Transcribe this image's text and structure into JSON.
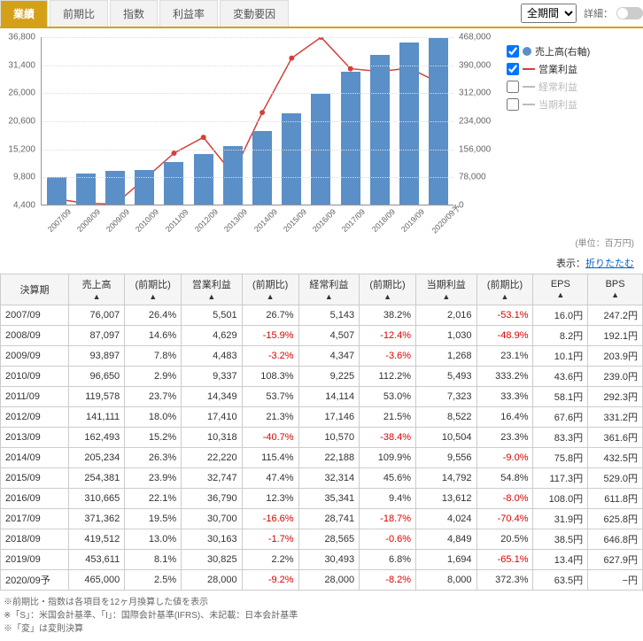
{
  "tabs": {
    "items": [
      "業績",
      "前期比",
      "指数",
      "利益率",
      "変動要因"
    ],
    "active": 0
  },
  "period_select": "全期間",
  "detail_label": "詳細：",
  "chart": {
    "type": "bar+line",
    "categories": [
      "2007/09",
      "2008/09",
      "2009/09",
      "2010/09",
      "2011/09",
      "2012/09",
      "2013/09",
      "2014/09",
      "2015/09",
      "2016/09",
      "2017/09",
      "2018/09",
      "2019/09",
      "2020/09予"
    ],
    "bars": {
      "label": "売上高(右軸)",
      "color": "#5b8fc7",
      "values": [
        76007,
        87097,
        93897,
        96650,
        119578,
        141111,
        162493,
        205234,
        254381,
        310665,
        371362,
        419512,
        453611,
        465000
      ],
      "ymin": 0,
      "ymax": 468000,
      "ticks": [
        0,
        78000,
        156000,
        234000,
        312000,
        390000,
        468000
      ]
    },
    "line": {
      "label": "営業利益",
      "color": "#d43f3a",
      "values": [
        5501,
        4629,
        4483,
        9337,
        14349,
        17410,
        10318,
        22220,
        32747,
        36790,
        30700,
        30163,
        30825,
        28000
      ],
      "ymin": 4400,
      "ymax": 36800,
      "ticks": [
        4400,
        9800,
        15200,
        20600,
        26000,
        31400,
        36800
      ]
    },
    "legend_extra": [
      {
        "label": "経常利益",
        "color": "#bbb"
      },
      {
        "label": "当期利益",
        "color": "#bbb"
      }
    ],
    "unit": "(単位：百万円)"
  },
  "table": {
    "toggle_label": "表示：",
    "toggle_link": "折りたたむ",
    "columns": [
      "決算期",
      "売上高",
      "(前期比)",
      "営業利益",
      "(前期比)",
      "経常利益",
      "(前期比)",
      "当期利益",
      "(前期比)",
      "EPS",
      "BPS"
    ],
    "rows": [
      [
        "2007/09",
        "76,007",
        "26.4%",
        "5,501",
        "26.7%",
        "5,143",
        "38.2%",
        "2,016",
        "-53.1%",
        "16.0円",
        "247.2円"
      ],
      [
        "2008/09",
        "87,097",
        "14.6%",
        "4,629",
        "-15.9%",
        "4,507",
        "-12.4%",
        "1,030",
        "-48.9%",
        "8.2円",
        "192.1円"
      ],
      [
        "2009/09",
        "93,897",
        "7.8%",
        "4,483",
        "-3.2%",
        "4,347",
        "-3.6%",
        "1,268",
        "23.1%",
        "10.1円",
        "203.9円"
      ],
      [
        "2010/09",
        "96,650",
        "2.9%",
        "9,337",
        "108.3%",
        "9,225",
        "112.2%",
        "5,493",
        "333.2%",
        "43.6円",
        "239.0円"
      ],
      [
        "2011/09",
        "119,578",
        "23.7%",
        "14,349",
        "53.7%",
        "14,114",
        "53.0%",
        "7,323",
        "33.3%",
        "58.1円",
        "292.3円"
      ],
      [
        "2012/09",
        "141,111",
        "18.0%",
        "17,410",
        "21.3%",
        "17,146",
        "21.5%",
        "8,522",
        "16.4%",
        "67.6円",
        "331.2円"
      ],
      [
        "2013/09",
        "162,493",
        "15.2%",
        "10,318",
        "-40.7%",
        "10,570",
        "-38.4%",
        "10,504",
        "23.3%",
        "83.3円",
        "361.6円"
      ],
      [
        "2014/09",
        "205,234",
        "26.3%",
        "22,220",
        "115.4%",
        "22,188",
        "109.9%",
        "9,556",
        "-9.0%",
        "75.8円",
        "432.5円"
      ],
      [
        "2015/09",
        "254,381",
        "23.9%",
        "32,747",
        "47.4%",
        "32,314",
        "45.6%",
        "14,792",
        "54.8%",
        "117.3円",
        "529.0円"
      ],
      [
        "2016/09",
        "310,665",
        "22.1%",
        "36,790",
        "12.3%",
        "35,341",
        "9.4%",
        "13,612",
        "-8.0%",
        "108.0円",
        "611.8円"
      ],
      [
        "2017/09",
        "371,362",
        "19.5%",
        "30,700",
        "-16.6%",
        "28,741",
        "-18.7%",
        "4,024",
        "-70.4%",
        "31.9円",
        "625.8円"
      ],
      [
        "2018/09",
        "419,512",
        "13.0%",
        "30,163",
        "-1.7%",
        "28,565",
        "-0.6%",
        "4,849",
        "20.5%",
        "38.5円",
        "646.8円"
      ],
      [
        "2019/09",
        "453,611",
        "8.1%",
        "30,825",
        "2.2%",
        "30,493",
        "6.8%",
        "1,694",
        "-65.1%",
        "13.4円",
        "627.9円"
      ],
      [
        "2020/09予",
        "465,000",
        "2.5%",
        "28,000",
        "-9.2%",
        "28,000",
        "-8.2%",
        "8,000",
        "372.3%",
        "63.5円",
        "−円"
      ]
    ]
  },
  "footnotes": [
    "※前期比・指数は各項目を12ヶ月換算した値を表示",
    "※「S」：米国会計基準、「I」：国際会計基準(IFRS)、未記載：日本会計基準",
    "※「変」は変則決算"
  ]
}
